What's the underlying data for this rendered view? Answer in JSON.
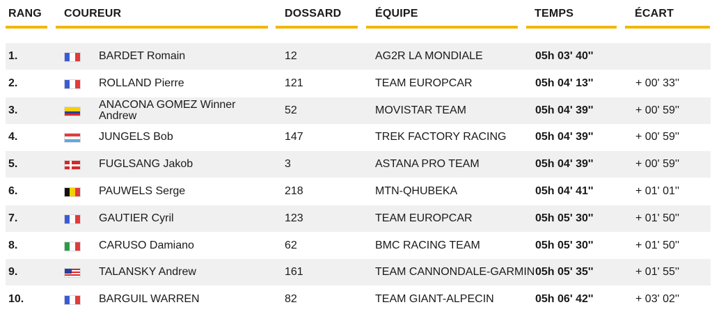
{
  "header": {
    "rank": "RANG",
    "rider": "COUREUR",
    "bib": "DOSSARD",
    "team": "ÉQUIPE",
    "time": "TEMPS",
    "gap": "ÉCART"
  },
  "colors": {
    "accent": "#f2b705",
    "row_alt": "#f0f0f0"
  },
  "rows": [
    {
      "rank": "1.",
      "flag": "france-flag-icon",
      "rider": "BARDET Romain",
      "bib": "12",
      "team": "AG2R LA MONDIALE",
      "time": "05h 03' 40''",
      "gap": ""
    },
    {
      "rank": "2.",
      "flag": "france-flag-icon",
      "rider": "ROLLAND Pierre",
      "bib": "121",
      "team": "TEAM EUROPCAR",
      "time": "05h 04' 13''",
      "gap": "+ 00' 33''"
    },
    {
      "rank": "3.",
      "flag": "colombia-flag-icon",
      "rider": "ANACONA GOMEZ Winner Andrew",
      "bib": "52",
      "team": "MOVISTAR TEAM",
      "time": "05h 04' 39''",
      "gap": "+ 00' 59''"
    },
    {
      "rank": "4.",
      "flag": "luxembourg-flag-icon",
      "rider": "JUNGELS Bob",
      "bib": "147",
      "team": "TREK FACTORY RACING",
      "time": "05h 04' 39''",
      "gap": "+ 00' 59''"
    },
    {
      "rank": "5.",
      "flag": "denmark-flag-icon",
      "rider": "FUGLSANG Jakob",
      "bib": "3",
      "team": "ASTANA PRO TEAM",
      "time": "05h 04' 39''",
      "gap": "+ 00' 59''"
    },
    {
      "rank": "6.",
      "flag": "belgium-flag-icon",
      "rider": "PAUWELS Serge",
      "bib": "218",
      "team": "MTN-QHUBEKA",
      "time": "05h 04' 41''",
      "gap": "+ 01' 01''"
    },
    {
      "rank": "7.",
      "flag": "france-flag-icon",
      "rider": "GAUTIER Cyril",
      "bib": "123",
      "team": "TEAM EUROPCAR",
      "time": "05h 05' 30''",
      "gap": "+ 01' 50''"
    },
    {
      "rank": "8.",
      "flag": "italy-flag-icon",
      "rider": "CARUSO Damiano",
      "bib": "62",
      "team": "BMC RACING TEAM",
      "time": "05h 05' 30''",
      "gap": "+ 01' 50''"
    },
    {
      "rank": "9.",
      "flag": "usa-flag-icon",
      "rider": "TALANSKY Andrew",
      "bib": "161",
      "team": "TEAM CANNONDALE-GARMIN",
      "time": "05h 05' 35''",
      "gap": "+ 01' 55''"
    },
    {
      "rank": "10.",
      "flag": "france-flag-icon",
      "rider": "BARGUIL WARREN",
      "bib": "82",
      "team": "TEAM GIANT-ALPECIN",
      "time": "05h 06' 42''",
      "gap": "+ 03' 02''"
    }
  ]
}
